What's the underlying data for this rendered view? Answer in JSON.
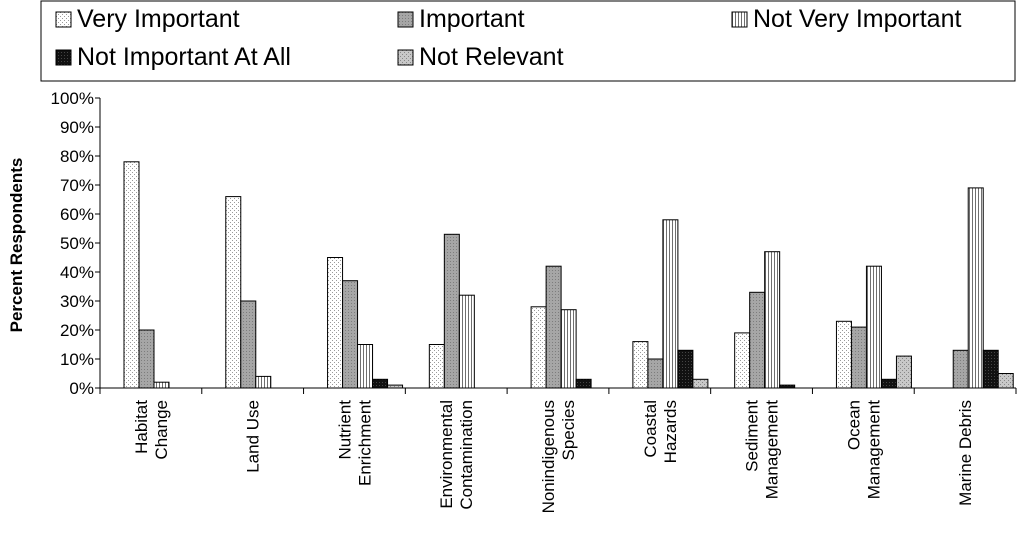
{
  "chart_data": {
    "type": "bar",
    "title": "",
    "xlabel": "",
    "ylabel": "Percent Respondents",
    "ylim": [
      0,
      100
    ],
    "yticks": [
      "0%",
      "10%",
      "20%",
      "30%",
      "40%",
      "50%",
      "60%",
      "70%",
      "80%",
      "90%",
      "100%"
    ],
    "categories": [
      [
        "Habitat",
        "Change"
      ],
      [
        "Land Use"
      ],
      [
        "Nutrient",
        "Enrichment"
      ],
      [
        "Environmental",
        "Contamination"
      ],
      [
        "Nonindigenous",
        "Species"
      ],
      [
        "Coastal",
        "Hazards"
      ],
      [
        "Sediment",
        "Management"
      ],
      [
        "Ocean",
        "Management"
      ],
      [
        "Marine Debris"
      ]
    ],
    "legend_position": "top",
    "grid": false,
    "series": [
      {
        "name": "Very Important",
        "pattern": "dots",
        "values": [
          78,
          66,
          45,
          15,
          28,
          16,
          19,
          23,
          0
        ]
      },
      {
        "name": "Important",
        "pattern": "gray",
        "values": [
          20,
          30,
          37,
          53,
          42,
          10,
          33,
          21,
          13
        ]
      },
      {
        "name": "Not Very Important",
        "pattern": "vlines",
        "values": [
          2,
          4,
          15,
          32,
          27,
          58,
          47,
          42,
          69
        ]
      },
      {
        "name": "Not Important At All",
        "pattern": "black",
        "values": [
          0,
          0,
          3,
          0,
          3,
          13,
          1,
          3,
          13
        ]
      },
      {
        "name": "Not Relevant",
        "pattern": "stipple",
        "values": [
          0,
          0,
          1,
          0,
          0,
          3,
          0,
          11,
          5
        ]
      }
    ]
  }
}
